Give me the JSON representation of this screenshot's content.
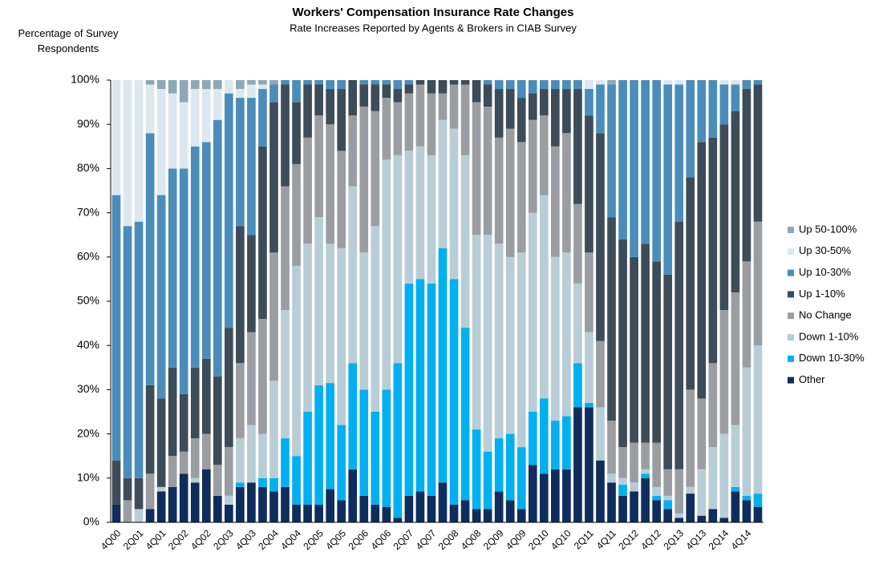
{
  "chart_data": {
    "type": "stacked_bar",
    "title": "Workers' Compensation Insurance Rate Changes",
    "subtitle": "Rate Increases Reported by Agents & Brokers in CIAB Survey",
    "y_label": "Percentage of Survey Respondents",
    "categories": [
      "4Q00",
      null,
      "2Q01",
      null,
      "4Q01",
      null,
      "2Q02",
      null,
      "4Q02",
      null,
      "2Q03",
      null,
      "4Q03",
      null,
      "2Q04",
      null,
      "4Q04",
      null,
      "2Q05",
      null,
      "4Q05",
      null,
      "2Q06",
      null,
      "4Q06",
      null,
      "2Q07",
      null,
      "4Q07",
      null,
      "2Q08",
      null,
      "4Q08",
      null,
      "2Q09",
      null,
      "4Q09",
      null,
      "2Q10",
      null,
      "4Q10",
      null,
      "2Q11",
      null,
      "4Q11",
      null,
      "2Q12",
      null,
      "4Q12",
      null,
      "2Q13",
      null,
      "4Q13",
      null,
      "2Q14",
      null,
      "4Q14",
      null
    ],
    "series": [
      {
        "name": "Other",
        "color": "#0e2d5c",
        "values": [
          4,
          0,
          0,
          3,
          7,
          8,
          11,
          9,
          12,
          6,
          4,
          8,
          9,
          8,
          7,
          8,
          4,
          4,
          4,
          7.5,
          5,
          12,
          6,
          4,
          3.5,
          1,
          6,
          7,
          6,
          9,
          4,
          5,
          3,
          3,
          7,
          5,
          3,
          13,
          11,
          12,
          12,
          26,
          26,
          14,
          9,
          6,
          7,
          10,
          5,
          3,
          1,
          6.5,
          1.5,
          3,
          1,
          7,
          5,
          3.5
        ]
      },
      {
        "name": "Down 10-30%",
        "color": "#00b0f0",
        "values": [
          0,
          0,
          0,
          0,
          0,
          0,
          0,
          0,
          0,
          0,
          0,
          1,
          0,
          2,
          3,
          11,
          11,
          21,
          27,
          24,
          17,
          24,
          24,
          21,
          26.5,
          35,
          48,
          48,
          48,
          53,
          51,
          39,
          18,
          13,
          12,
          15,
          14,
          12,
          17,
          11,
          12,
          10,
          1,
          0,
          0,
          2.5,
          0,
          1,
          1,
          2,
          0,
          0,
          0,
          0,
          0,
          1,
          1,
          3
        ]
      },
      {
        "name": "Down 1-10%",
        "color": "#b8cdd5",
        "values": [
          0,
          0,
          3,
          0,
          1,
          0,
          0,
          1,
          0,
          0,
          2,
          10,
          13,
          10,
          22,
          29,
          43,
          38,
          38,
          31.5,
          40,
          40,
          31,
          42,
          52,
          47,
          30,
          30,
          29,
          29,
          34,
          39,
          44,
          49,
          44,
          40,
          44,
          45,
          46,
          37,
          37,
          18,
          16,
          12,
          2,
          1.5,
          2,
          1,
          2,
          1,
          1,
          1.5,
          10.5,
          14,
          19,
          14,
          29,
          33.5
        ]
      },
      {
        "name": "No Change",
        "color": "#9a9ea3",
        "values": [
          0,
          5,
          0,
          8,
          0,
          7,
          5,
          9,
          8,
          7,
          11,
          17,
          21,
          26,
          29,
          28,
          23,
          24,
          23,
          27,
          22,
          16,
          33,
          26,
          14,
          12,
          13,
          14,
          14,
          6,
          10,
          16,
          30,
          29,
          24,
          29,
          25,
          21,
          18,
          25,
          27,
          18,
          18,
          15,
          12,
          7,
          9,
          6,
          10,
          6,
          10,
          22,
          16,
          19,
          28,
          30,
          24,
          28
        ]
      },
      {
        "name": "Up 1-10%",
        "color": "#3d4c59",
        "values": [
          10,
          5,
          7,
          20,
          20,
          20,
          13,
          16,
          17,
          20,
          27,
          31,
          22,
          39,
          34,
          23,
          14,
          12,
          7,
          8,
          14,
          8,
          5,
          6,
          3,
          3,
          2,
          1,
          3,
          3,
          1,
          1,
          5,
          5,
          11,
          9,
          10,
          6,
          6,
          13,
          10,
          26,
          31,
          47,
          46,
          47,
          42,
          45,
          41,
          44,
          56,
          48,
          58,
          51,
          42,
          41,
          39,
          31
        ]
      },
      {
        "name": "Up 10-30%",
        "color": "#4a8dba",
        "values": [
          60,
          57,
          58,
          57,
          46,
          45,
          51,
          50,
          49,
          58,
          53,
          29,
          31,
          13,
          4,
          1,
          5,
          1,
          1,
          2,
          2,
          0,
          1,
          1,
          1,
          2,
          1,
          0,
          0,
          0,
          0,
          0,
          0,
          1,
          2,
          2,
          4,
          3,
          2,
          2,
          2,
          2,
          6,
          11,
          30,
          36,
          40,
          37,
          41,
          43,
          31,
          22,
          14,
          13,
          9,
          6,
          2,
          1
        ]
      },
      {
        "name": "Up 30-50%",
        "color": "#dce8f0",
        "values": [
          26,
          33,
          32,
          11,
          24,
          17,
          15,
          13,
          12,
          7,
          3,
          2,
          3,
          1,
          0,
          0,
          0,
          0,
          0,
          0,
          0,
          0,
          0,
          0,
          0,
          0,
          0,
          0,
          0,
          0,
          0,
          0,
          0,
          0,
          0,
          0,
          0,
          0,
          0,
          0,
          0,
          0,
          2,
          1,
          0,
          0,
          0,
          0,
          0,
          1,
          1,
          0,
          0,
          0,
          1,
          1,
          0,
          0
        ]
      },
      {
        "name": "Up 50-100%",
        "color": "#8ea8b6",
        "values": [
          0,
          0,
          0,
          1,
          2,
          3,
          5,
          2,
          2,
          2,
          0,
          2,
          1,
          1,
          1,
          0,
          0,
          0,
          0,
          0,
          0,
          0,
          0,
          0,
          0,
          0,
          0,
          0,
          0,
          0,
          0,
          0,
          0,
          0,
          0,
          0,
          0,
          0,
          0,
          0,
          0,
          0,
          0,
          0,
          1,
          0,
          0,
          0,
          0,
          0,
          0,
          0,
          0,
          0,
          0,
          0,
          0,
          0
        ]
      }
    ],
    "ylim": [
      0,
      100
    ],
    "yticks": [
      {
        "value": 0,
        "label": "0%"
      },
      {
        "value": 10,
        "label": "10%"
      },
      {
        "value": 20,
        "label": "20%"
      },
      {
        "value": 30,
        "label": "30%"
      },
      {
        "value": 40,
        "label": "40%"
      },
      {
        "value": 50,
        "label": "50%"
      },
      {
        "value": 60,
        "label": "60%"
      },
      {
        "value": 70,
        "label": "70%"
      },
      {
        "value": 80,
        "label": "80%"
      },
      {
        "value": 90,
        "label": "90%"
      },
      {
        "value": 100,
        "label": "100%"
      }
    ],
    "grid": false,
    "legend": "right"
  }
}
